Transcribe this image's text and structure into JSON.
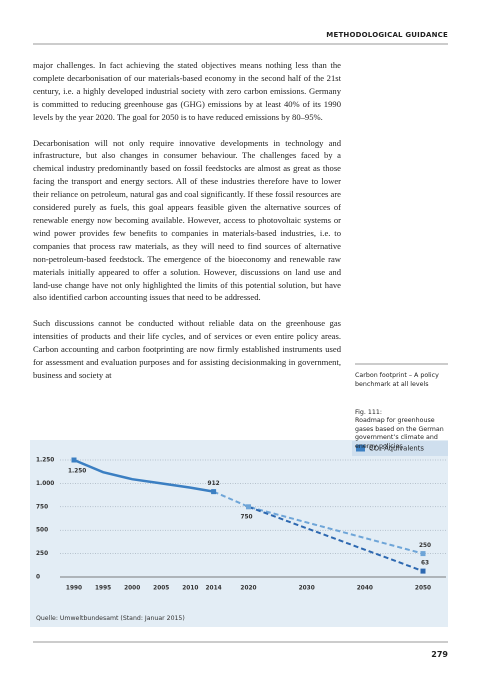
{
  "header": {
    "section": "METHODOLOGICAL GUIDANCE"
  },
  "body": {
    "paragraphs": [
      "major challenges. In fact achieving the stated objectives means nothing less than the complete decarbonisation of our materials-based economy in the second half of the 21st century, i.e. a highly developed industrial society with zero carbon emissions. Germany is committed to reducing greenhouse gas (GHG) emissions by at least 40% of its 1990 levels by the year 2020. The goal for 2050 is to have reduced emissions by 80–95%.",
      "Decarbonisation will not only require innovative developments in technology and infrastructure, but also changes in consumer behaviour. The challenges faced by a chemical industry predominantly based on fossil feedstocks are almost as great as those facing the transport and energy sectors. All of these industries therefore have to lower their reliance on petroleum, natural gas and coal significantly. If these fossil resources are considered purely as fuels, this goal appears feasible given the alternative sources of renewable energy now becoming available. However, access to photovoltaic systems or wind power provides few benefits to companies in materials-based industries, i.e. to companies that process raw materials, as they will need to find sources of alternative non-petroleum-based feedstock. The emergence of the bioeconomy and renewable raw materials initially appeared to offer a solution. However, discussions on land use and land-use change have not only highlighted the limits of this potential solution, but have also identified carbon accounting issues that need to be addressed.",
      "Such discussions cannot be conducted without reliable data on the greenhouse gas intensities of products and their life cycles, and of services or even entire policy areas. Carbon accounting and carbon footprinting are now firmly established instruments used for assessment and evaluation purposes and for assisting decisionmaking in government, business and society at"
    ]
  },
  "sidebar": {
    "heading": "Carbon footprint – A policy benchmark at all levels",
    "figure_label": "Fig. 111:",
    "figure_caption": "Roadmap for greenhouse gases based on the German government’s climate and energy policies"
  },
  "chart_data": {
    "type": "line",
    "series": [
      {
        "name": "CO₂-Äquivalents",
        "color": "#3b7fc2",
        "x": [
          1990,
          1995,
          2000,
          2005,
          2010,
          2014
        ],
        "values": [
          1250,
          1120,
          1045,
          1000,
          955,
          912
        ],
        "value_labels": [
          "1.250",
          null,
          null,
          null,
          null,
          "912"
        ]
      }
    ],
    "projections": [
      {
        "color": "#6ea5d8",
        "x": [
          2014,
          2020,
          2050
        ],
        "values": [
          912,
          750,
          250
        ],
        "value_labels": [
          null,
          "750",
          "250"
        ]
      },
      {
        "color": "#2d68b0",
        "x": [
          2020,
          2050
        ],
        "values": [
          750,
          63
        ],
        "value_labels": [
          null,
          "63"
        ]
      }
    ],
    "xlim": [
      1990,
      2050
    ],
    "xticks": [
      1990,
      1995,
      2000,
      2005,
      2010,
      2014,
      2020,
      2030,
      2040,
      2050
    ],
    "ylim": [
      0,
      1250
    ],
    "yticks": [
      0,
      250,
      500,
      750,
      {
        "value": 1000,
        "label": "1.000"
      },
      {
        "value": 1250,
        "label": "1.250"
      }
    ],
    "grid": true,
    "legend": "top-right",
    "source": "Quelle: Umweltbundesamt (Stand: Januar 2015)"
  },
  "footer": {
    "page_number": "279"
  }
}
